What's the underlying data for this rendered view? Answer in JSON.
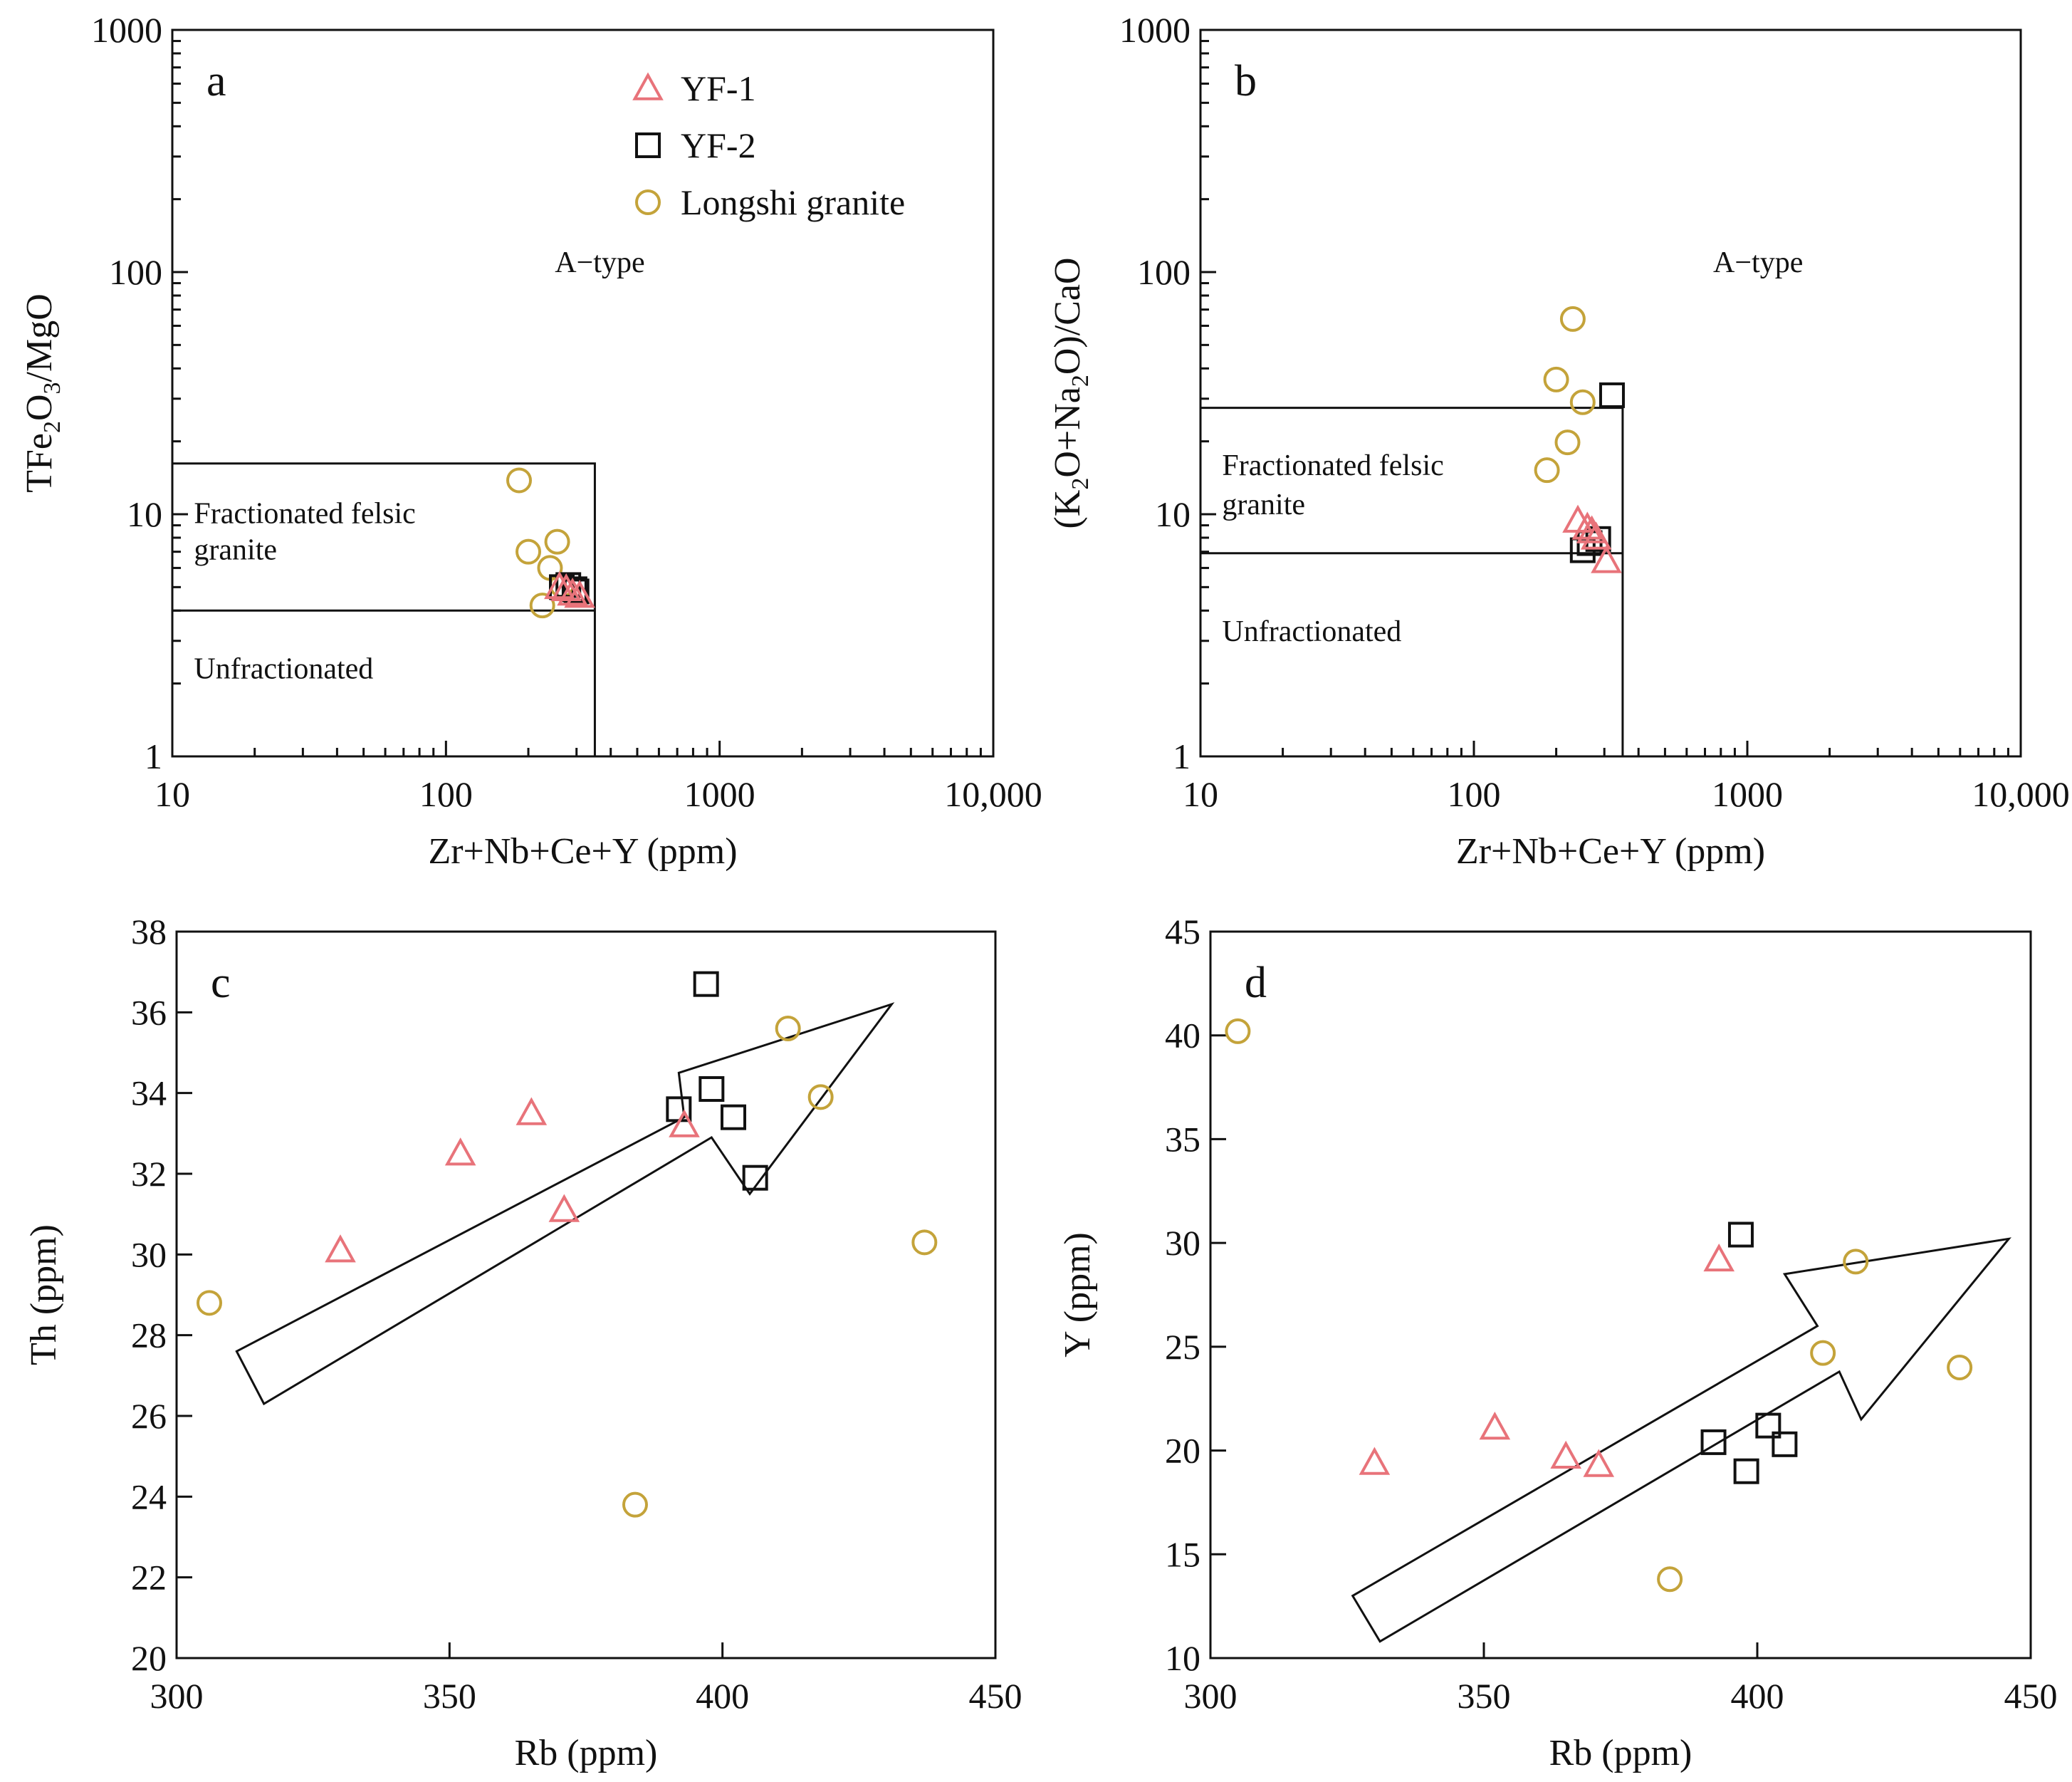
{
  "legend": [
    {
      "key": "yf1",
      "label": "YF-1",
      "shape": "triangle",
      "color": "#e8737a"
    },
    {
      "key": "yf2",
      "label": "YF-2",
      "shape": "square",
      "color": "#111111"
    },
    {
      "key": "longshi",
      "label": "Longshi granite",
      "shape": "circle",
      "color": "#c4a33a"
    }
  ],
  "chart_data": [
    {
      "panel": "a",
      "type": "scatter",
      "xscale": "log",
      "yscale": "log",
      "xlim": [
        10,
        10000
      ],
      "ylim": [
        1,
        1000
      ],
      "xticks": [
        {
          "v": 10,
          "label": "10"
        },
        {
          "v": 100,
          "label": "100"
        },
        {
          "v": 1000,
          "label": "1000"
        },
        {
          "v": 10000,
          "label": "10,000"
        }
      ],
      "yticks": [
        {
          "v": 1,
          "label": "1"
        },
        {
          "v": 10,
          "label": "10"
        },
        {
          "v": 100,
          "label": "100"
        },
        {
          "v": 1000,
          "label": "1000"
        }
      ],
      "xlabel": "Zr+Nb+Ce+Y (ppm)",
      "ylabel": "TFe2O3/MgO",
      "ylabel_parts": [
        [
          "TFe",
          false
        ],
        [
          "2",
          true
        ],
        [
          "O",
          false
        ],
        [
          "3",
          true
        ],
        [
          "/MgO",
          false
        ]
      ],
      "boundaries": [
        [
          [
            10,
            16.2
          ],
          [
            350,
            16.2
          ],
          [
            350,
            1
          ]
        ],
        [
          [
            10,
            4
          ],
          [
            350,
            4
          ]
        ]
      ],
      "regions": [
        {
          "text": "A−type",
          "x": 250,
          "y": 100
        },
        {
          "text": "Fractionated felsic",
          "x": 12,
          "y": 9.2
        },
        {
          "text": "granite",
          "x": 12,
          "y": 6.5
        },
        {
          "text": "Unfractionated",
          "x": 12,
          "y": 2.1
        }
      ],
      "series": {
        "yf1": [
          [
            260,
            5.0
          ],
          [
            275,
            4.9
          ],
          [
            290,
            4.7
          ],
          [
            308,
            4.6
          ]
        ],
        "yf2": [
          [
            265,
            5.0
          ],
          [
            280,
            5.1
          ],
          [
            295,
            4.9
          ],
          [
            300,
            4.8
          ]
        ],
        "longshi": [
          [
            185,
            13.8
          ],
          [
            200,
            7.0
          ],
          [
            225,
            4.2
          ],
          [
            240,
            6.0
          ],
          [
            255,
            7.7
          ],
          [
            265,
            5.1
          ]
        ]
      }
    },
    {
      "panel": "b",
      "type": "scatter",
      "xscale": "log",
      "yscale": "log",
      "xlim": [
        10,
        10000
      ],
      "ylim": [
        1,
        1000
      ],
      "xticks": [
        {
          "v": 10,
          "label": "10"
        },
        {
          "v": 100,
          "label": "100"
        },
        {
          "v": 1000,
          "label": "1000"
        },
        {
          "v": 10000,
          "label": "10,000"
        }
      ],
      "yticks": [
        {
          "v": 1,
          "label": "1"
        },
        {
          "v": 10,
          "label": "10"
        },
        {
          "v": 100,
          "label": "100"
        },
        {
          "v": 1000,
          "label": "1000"
        }
      ],
      "xlabel": "Zr+Nb+Ce+Y (ppm)",
      "ylabel": "(K2O+Na2O)/CaO",
      "ylabel_parts": [
        [
          "(K",
          false
        ],
        [
          "2",
          true
        ],
        [
          "O+Na",
          false
        ],
        [
          "2",
          true
        ],
        [
          "O)/CaO",
          false
        ]
      ],
      "boundaries": [
        [
          [
            10,
            27.5
          ],
          [
            350,
            27.5
          ],
          [
            350,
            1
          ]
        ],
        [
          [
            10,
            6.9
          ],
          [
            350,
            6.9
          ]
        ]
      ],
      "regions": [
        {
          "text": "A−type",
          "x": 750,
          "y": 100
        },
        {
          "text": "Fractionated felsic",
          "x": 12,
          "y": 14.5
        },
        {
          "text": "granite",
          "x": 12,
          "y": 10.0
        },
        {
          "text": "Unfractionated",
          "x": 12,
          "y": 3.0
        }
      ],
      "series": {
        "yf1": [
          [
            240,
            9.4
          ],
          [
            260,
            8.8
          ],
          [
            270,
            8.5
          ],
          [
            280,
            8.0
          ],
          [
            305,
            6.4
          ]
        ],
        "yf2": [
          [
            250,
            7.1
          ],
          [
            265,
            7.6
          ],
          [
            285,
            7.9
          ],
          [
            320,
            31.0
          ]
        ],
        "longshi": [
          [
            185,
            15.2
          ],
          [
            200,
            36.0
          ],
          [
            220,
            19.8
          ],
          [
            230,
            64.0
          ],
          [
            250,
            29.0
          ]
        ]
      }
    },
    {
      "panel": "c",
      "type": "scatter",
      "xscale": "linear",
      "yscale": "linear",
      "xlim": [
        300,
        450
      ],
      "ylim": [
        20,
        38
      ],
      "xticks": [
        {
          "v": 300,
          "label": "300"
        },
        {
          "v": 350,
          "label": "350"
        },
        {
          "v": 400,
          "label": "400"
        },
        {
          "v": 450,
          "label": "450"
        }
      ],
      "yticks": [
        {
          "v": 20,
          "label": "20"
        },
        {
          "v": 22,
          "label": "22"
        },
        {
          "v": 24,
          "label": "24"
        },
        {
          "v": 26,
          "label": "26"
        },
        {
          "v": 28,
          "label": "28"
        },
        {
          "v": 30,
          "label": "30"
        },
        {
          "v": 32,
          "label": "32"
        },
        {
          "v": 34,
          "label": "34"
        },
        {
          "v": 36,
          "label": "36"
        },
        {
          "v": 38,
          "label": "38"
        }
      ],
      "xlabel": "Rb (ppm)",
      "ylabel": "Th (ppm)",
      "ylabel_parts": [
        [
          "Th (ppm)",
          false
        ]
      ],
      "arrow": [
        [
          311,
          27.6
        ],
        [
          393,
          33.4
        ],
        [
          392,
          34.5
        ],
        [
          431,
          36.2
        ],
        [
          405,
          31.5
        ],
        [
          398,
          32.9
        ],
        [
          316,
          26.3
        ]
      ],
      "series": {
        "yf1": [
          [
            330,
            30.1
          ],
          [
            352,
            32.5
          ],
          [
            365,
            33.5
          ],
          [
            371,
            31.1
          ],
          [
            393,
            33.2
          ]
        ],
        "yf2": [
          [
            392,
            33.6
          ],
          [
            397,
            36.7
          ],
          [
            398,
            34.1
          ],
          [
            402,
            33.4
          ],
          [
            406,
            31.9
          ]
        ],
        "longshi": [
          [
            306,
            28.8
          ],
          [
            384,
            23.8
          ],
          [
            412,
            35.6
          ],
          [
            418,
            33.9
          ],
          [
            437,
            30.3
          ]
        ]
      }
    },
    {
      "panel": "d",
      "type": "scatter",
      "xscale": "linear",
      "yscale": "linear",
      "xlim": [
        300,
        450
      ],
      "ylim": [
        10,
        45
      ],
      "xticks": [
        {
          "v": 300,
          "label": "300"
        },
        {
          "v": 350,
          "label": "350"
        },
        {
          "v": 400,
          "label": "400"
        },
        {
          "v": 450,
          "label": "450"
        }
      ],
      "yticks": [
        {
          "v": 10,
          "label": "10"
        },
        {
          "v": 15,
          "label": "15"
        },
        {
          "v": 20,
          "label": "20"
        },
        {
          "v": 25,
          "label": "25"
        },
        {
          "v": 30,
          "label": "30"
        },
        {
          "v": 35,
          "label": "35"
        },
        {
          "v": 40,
          "label": "40"
        },
        {
          "v": 45,
          "label": "45"
        }
      ],
      "xlabel": "Rb (ppm)",
      "ylabel": "Y (ppm)",
      "ylabel_parts": [
        [
          "Y (ppm)",
          false
        ]
      ],
      "arrow": [
        [
          326,
          13.0
        ],
        [
          411,
          26.0
        ],
        [
          405,
          28.5
        ],
        [
          446,
          30.2
        ],
        [
          419,
          21.5
        ],
        [
          415,
          23.8
        ],
        [
          331,
          10.8
        ]
      ],
      "series": {
        "yf1": [
          [
            330,
            19.4
          ],
          [
            352,
            21.1
          ],
          [
            365,
            19.7
          ],
          [
            371,
            19.3
          ],
          [
            393,
            29.2
          ]
        ],
        "yf2": [
          [
            392,
            20.4
          ],
          [
            397,
            30.4
          ],
          [
            398,
            19.0
          ],
          [
            402,
            21.2
          ],
          [
            405,
            20.3
          ]
        ],
        "longshi": [
          [
            305,
            40.2
          ],
          [
            384,
            13.8
          ],
          [
            412,
            24.7
          ],
          [
            418,
            29.1
          ],
          [
            437,
            24.0
          ]
        ]
      }
    }
  ]
}
